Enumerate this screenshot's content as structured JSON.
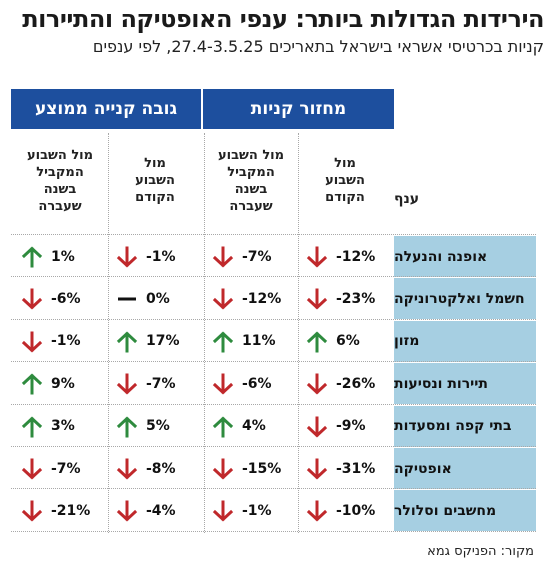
{
  "title": "הירידות הגדולות ביותר: ענפי האופטיקה והתיירות",
  "subtitle": "קניות בכרטיסי אשראי בישראל בתאריכים 27.4-3.5.25, לפי ענפים",
  "source": "מקור: הפניקס גמא",
  "colors": {
    "header_blue": "#1d4f9e",
    "branch_bg": "#a6cfe2",
    "up": "#2e8b3e",
    "down": "#c0282b",
    "flat": "#111111"
  },
  "chart_data": {
    "type": "table",
    "group_headers": [
      "מחזור קניות",
      "גובה קנייה ממוצע"
    ],
    "column_headers": {
      "branch": "ענף",
      "turnover_prev_week": "מול\nהשבוע\nהקודם",
      "turnover_last_year": "מול השבוע\nהמקביל\nבשנה\nשעברה",
      "avg_prev_week": "מול\nהשבוע\nהקודם",
      "avg_last_year": "מול השבוע\nהמקביל\nבשנה\nשעברה"
    },
    "rows": [
      {
        "branch": "אופנה והנעלה",
        "turnover_prev_week": "-12%",
        "turnover_last_year": "-7%",
        "avg_prev_week": "-1%",
        "avg_last_year": "1%",
        "icons": [
          "arrow-down",
          "arrow-down",
          "arrow-down",
          "arrow-up"
        ]
      },
      {
        "branch": "חשמל ואלקטרוניקה",
        "turnover_prev_week": "-23%",
        "turnover_last_year": "-12%",
        "avg_prev_week": "0%",
        "avg_last_year": "-6%",
        "icons": [
          "arrow-down",
          "arrow-down",
          "dash",
          "arrow-down"
        ]
      },
      {
        "branch": "מזון",
        "turnover_prev_week": "6%",
        "turnover_last_year": "11%",
        "avg_prev_week": "17%",
        "avg_last_year": "-1%",
        "icons": [
          "arrow-up",
          "arrow-up",
          "arrow-up",
          "arrow-down"
        ]
      },
      {
        "branch": "תיירות ונסיעות",
        "turnover_prev_week": "-26%",
        "turnover_last_year": "-6%",
        "avg_prev_week": "-7%",
        "avg_last_year": "9%",
        "icons": [
          "arrow-down",
          "arrow-down",
          "arrow-down",
          "arrow-up"
        ]
      },
      {
        "branch": "בתי קפה ומסעדות",
        "turnover_prev_week": "-9%",
        "turnover_last_year": "4%",
        "avg_prev_week": "5%",
        "avg_last_year": "3%",
        "icons": [
          "arrow-down",
          "arrow-up",
          "arrow-up",
          "arrow-up"
        ]
      },
      {
        "branch": "אופטיקה",
        "turnover_prev_week": "-31%",
        "turnover_last_year": "-15%",
        "avg_prev_week": "-8%",
        "avg_last_year": "-7%",
        "icons": [
          "arrow-down",
          "arrow-down",
          "arrow-down",
          "arrow-down"
        ]
      },
      {
        "branch": "מחשבים וסלולר",
        "turnover_prev_week": "-10%",
        "turnover_last_year": "-1%",
        "avg_prev_week": "-4%",
        "avg_last_year": "-21%",
        "icons": [
          "arrow-down",
          "arrow-down",
          "arrow-down",
          "arrow-down"
        ]
      }
    ]
  }
}
